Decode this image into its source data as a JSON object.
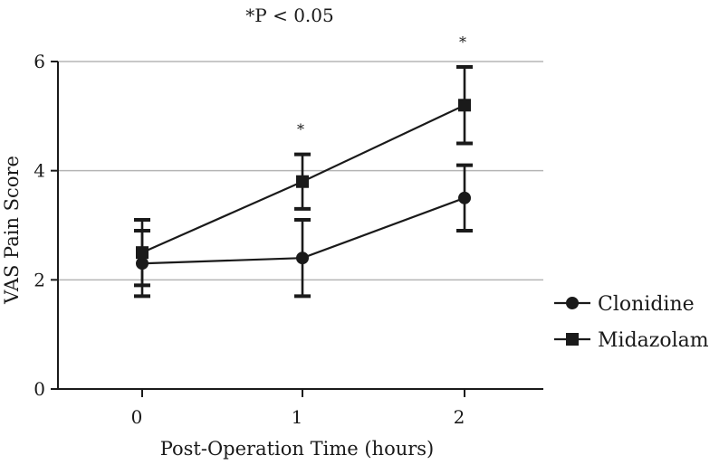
{
  "chart_data": {
    "type": "line",
    "note": "*P < 0.05",
    "xlabel": "Post-Operation Time (hours)",
    "ylabel": "VAS Pain Score",
    "x": [
      0,
      1,
      2
    ],
    "x_tick_labels": [
      "0",
      "1",
      "2"
    ],
    "y_ticks": [
      0,
      2,
      4,
      6
    ],
    "y_tick_labels": [
      "0",
      "2",
      "4",
      "6"
    ],
    "ylim": [
      0,
      6
    ],
    "grid": true,
    "legend_position": "right",
    "significance_marks": [
      {
        "x": 1,
        "label": "*"
      },
      {
        "x": 2,
        "label": "*"
      }
    ],
    "series": [
      {
        "name": "Clonidine",
        "marker": "circle",
        "color": "#1a1a1a",
        "values": [
          2.3,
          2.4,
          3.5
        ],
        "error_low": [
          1.7,
          1.7,
          2.9
        ],
        "error_high": [
          2.9,
          3.1,
          4.1
        ]
      },
      {
        "name": "Midazolam",
        "marker": "square",
        "color": "#1a1a1a",
        "values": [
          2.5,
          3.8,
          5.2
        ],
        "error_low": [
          1.9,
          3.3,
          4.5
        ],
        "error_high": [
          3.1,
          4.3,
          5.9
        ]
      }
    ]
  }
}
